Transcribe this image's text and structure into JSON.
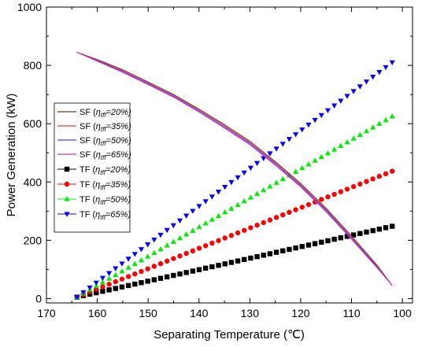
{
  "chart_data": {
    "type": "line",
    "xlabel": "Separating Temperature (℃)",
    "ylabel": "Power Generation (kW)",
    "xlim": [
      170,
      98
    ],
    "ylim": [
      -15,
      1000
    ],
    "x_reversed": true,
    "grid": false,
    "legend_placement": "middle-left",
    "x_ticks": [
      170,
      160,
      150,
      140,
      130,
      120,
      110,
      100
    ],
    "y_ticks": [
      0,
      200,
      400,
      600,
      800,
      1000
    ],
    "sf_series": [
      {
        "label": "SF (",
        "eta": "η",
        "sub": "tff",
        "pct": "=20%)",
        "color": "#6b3a1f",
        "x": [
          164,
          160,
          155,
          150,
          145,
          140,
          135,
          130,
          125,
          120,
          115,
          110,
          105,
          102
        ],
        "y": [
          845,
          820,
          785,
          743,
          700,
          650,
          597,
          540,
          470,
          395,
          310,
          215,
          115,
          45
        ]
      },
      {
        "label": "SF (",
        "eta": "η",
        "sub": "tff",
        "pct": "=35%)",
        "color": "#ff3030",
        "x": [
          164,
          160,
          155,
          150,
          145,
          140,
          135,
          130,
          125,
          120,
          115,
          110,
          105,
          102
        ],
        "y": [
          845,
          818,
          782,
          740,
          697,
          647,
          593,
          536,
          466,
          391,
          306,
          211,
          112,
          45
        ]
      },
      {
        "label": "SF (",
        "eta": "η",
        "sub": "tff",
        "pct": "=50%)",
        "color": "#4040ff",
        "x": [
          164,
          160,
          155,
          150,
          145,
          140,
          135,
          130,
          125,
          120,
          115,
          110,
          105,
          102
        ],
        "y": [
          845,
          816,
          779,
          737,
          694,
          643,
          589,
          532,
          462,
          387,
          302,
          207,
          109,
          45
        ]
      },
      {
        "label": "SF (",
        "eta": "η",
        "sub": "tff",
        "pct": "=65%)",
        "color": "#cc33cc",
        "x": [
          164,
          160,
          155,
          150,
          145,
          140,
          135,
          130,
          125,
          120,
          115,
          110,
          105,
          102
        ],
        "y": [
          845,
          814,
          776,
          734,
          691,
          640,
          585,
          528,
          458,
          383,
          298,
          203,
          106,
          45
        ]
      }
    ],
    "tf_series": [
      {
        "label": "TF (",
        "eta": "η",
        "sub": "tff",
        "pct": "=20%)",
        "color": "#000000",
        "marker": "square",
        "x_start": 164,
        "x_end": 102,
        "y_start": 5,
        "y_end": 248
      },
      {
        "label": "TF (",
        "eta": "η",
        "sub": "tff",
        "pct": "=35%)",
        "color": "#ff0000",
        "marker": "circle",
        "x_start": 164,
        "x_end": 102,
        "y_start": 5,
        "y_end": 437
      },
      {
        "label": "TF (",
        "eta": "η",
        "sub": "tff",
        "pct": "=50%)",
        "color": "#00ee00",
        "marker": "triangle-up",
        "x_start": 164,
        "x_end": 102,
        "y_start": 5,
        "y_end": 625
      },
      {
        "label": "TF (",
        "eta": "η",
        "sub": "tff",
        "pct": "=65%)",
        "color": "#0000ff",
        "marker": "triangle-down",
        "x_start": 164,
        "x_end": 102,
        "y_start": 5,
        "y_end": 810
      }
    ],
    "tf_points_per_series": 50
  }
}
